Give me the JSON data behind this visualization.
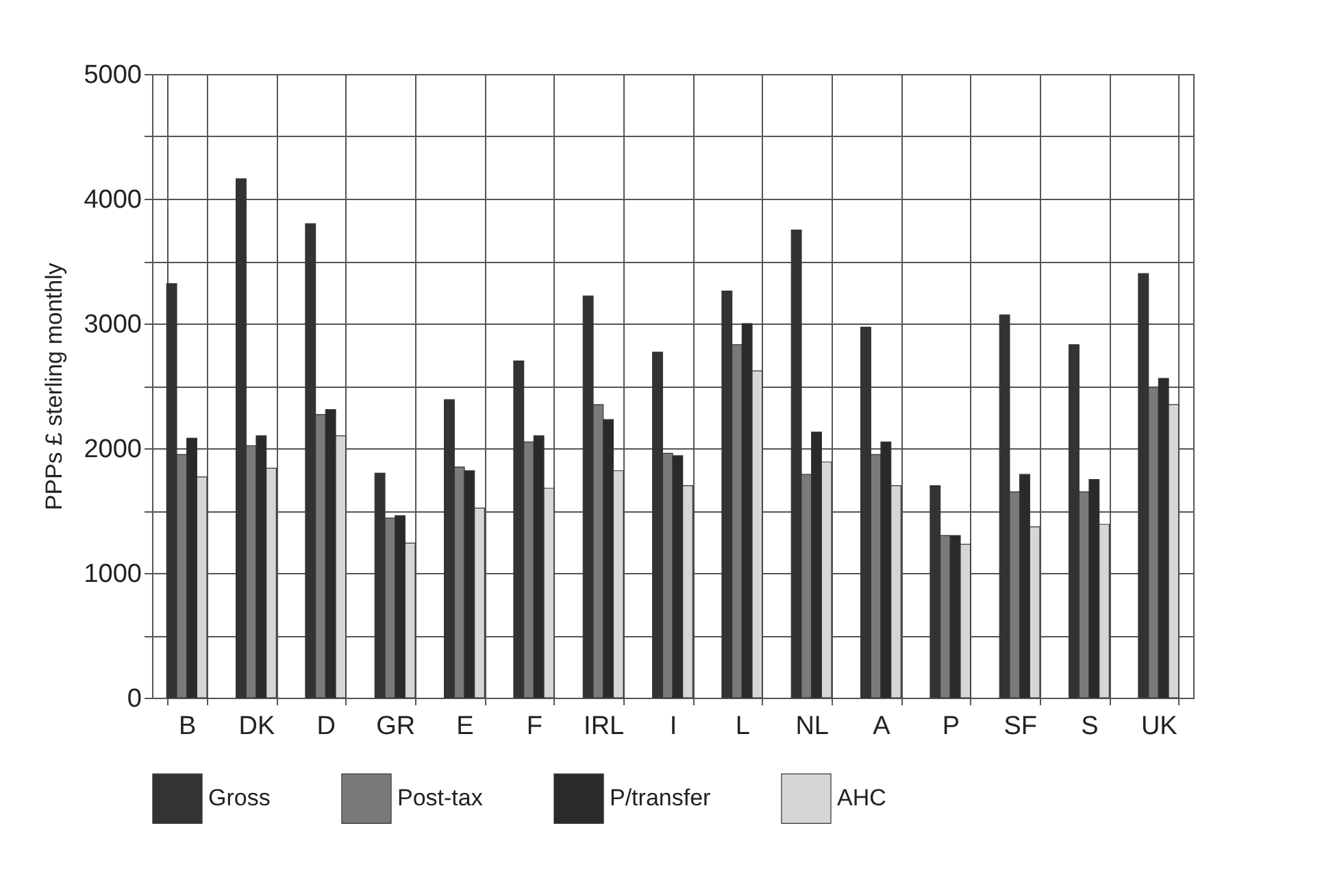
{
  "chart_data": {
    "type": "bar",
    "ylabel": "PPPs £ sterling monthly",
    "categories": [
      "B",
      "DK",
      "D",
      "GR",
      "E",
      "F",
      "IRL",
      "I",
      "L",
      "NL",
      "A",
      "P",
      "SF",
      "S",
      "UK"
    ],
    "series": [
      {
        "name": "Gross",
        "color": "#333333",
        "values": [
          3320,
          4160,
          3800,
          1800,
          2390,
          2700,
          3220,
          2770,
          3260,
          3750,
          2970,
          1700,
          3070,
          2830,
          3400
        ]
      },
      {
        "name": "Post-tax",
        "color": "#7a7a7a",
        "values": [
          1950,
          2020,
          2270,
          1440,
          1850,
          2050,
          2350,
          1960,
          2830,
          1790,
          1950,
          1300,
          1650,
          1650,
          2490
        ]
      },
      {
        "name": "P/transfer",
        "color": "#2a2a2a",
        "values": [
          2080,
          2100,
          2310,
          1460,
          1820,
          2100,
          2230,
          1940,
          3000,
          2130,
          2050,
          1300,
          1790,
          1750,
          2560
        ]
      },
      {
        "name": "AHC",
        "color": "#d6d6d6",
        "values": [
          1770,
          1840,
          2100,
          1240,
          1520,
          1680,
          1820,
          1700,
          2620,
          1890,
          1700,
          1230,
          1370,
          1390,
          2350
        ]
      }
    ],
    "ylim": [
      0,
      5000
    ],
    "yticks": [
      0,
      {
        "value": 500,
        "label": null
      },
      1000,
      {
        "value": 1500,
        "label": null
      },
      2000,
      {
        "value": 2500,
        "label": null
      },
      3000,
      {
        "value": 3500,
        "label": null
      },
      4000,
      {
        "value": 4500,
        "label": null
      },
      5000
    ],
    "grid": true,
    "legend": "bottom"
  }
}
